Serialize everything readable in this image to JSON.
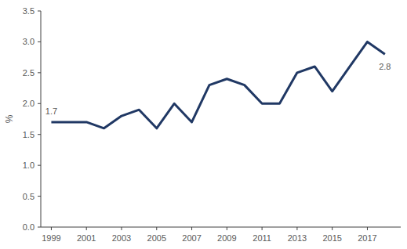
{
  "chart_data": {
    "type": "line",
    "y_label": "%",
    "x": [
      1999,
      2000,
      2001,
      2002,
      2003,
      2004,
      2005,
      2006,
      2007,
      2008,
      2009,
      2010,
      2011,
      2012,
      2013,
      2014,
      2015,
      2016,
      2017,
      2018
    ],
    "values": [
      1.7,
      1.7,
      1.7,
      1.6,
      1.8,
      1.9,
      1.6,
      2.0,
      1.7,
      2.3,
      2.4,
      2.3,
      2.0,
      2.0,
      2.5,
      2.6,
      2.2,
      2.6,
      3.0,
      2.8
    ],
    "color": "#203864",
    "xlim": [
      1998.4,
      2018.9
    ],
    "xticks": [
      1999,
      2001,
      2003,
      2005,
      2007,
      2009,
      2011,
      2013,
      2015,
      2017
    ],
    "ylim": [
      0,
      3.5
    ],
    "yticks": [
      {
        "value": 0,
        "label": "0.0"
      },
      0.5,
      {
        "value": 1,
        "label": "1.0"
      },
      1.5,
      {
        "value": 2,
        "label": "2.0"
      },
      2.5,
      {
        "value": 3,
        "label": "3.0"
      },
      3.5
    ],
    "grid": false,
    "annotations": [
      {
        "x": 1999,
        "y": 1.7,
        "text": "1.7"
      },
      {
        "x": 2018,
        "y": 2.8,
        "text": "2.8"
      }
    ]
  }
}
